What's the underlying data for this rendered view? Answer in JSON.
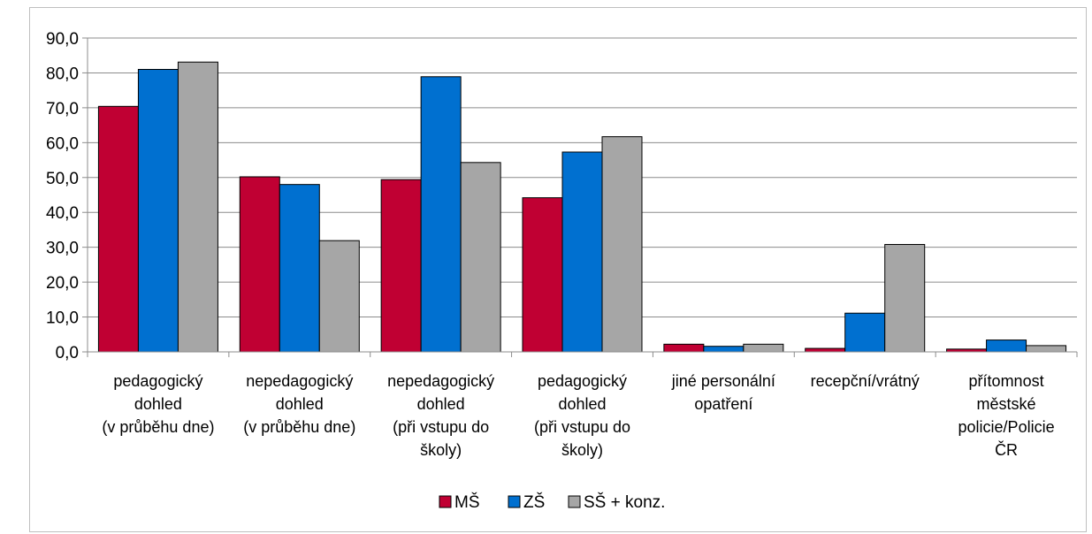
{
  "chart_data": {
    "type": "bar",
    "categories": [
      [
        "pedagogický",
        "dohled",
        "(v průběhu dne)"
      ],
      [
        "nepedagogický",
        "dohled",
        "(v průběhu dne)"
      ],
      [
        "nepedagogický",
        "dohled",
        "(při vstupu do",
        "školy)"
      ],
      [
        "pedagogický",
        "dohled",
        "(při vstupu do",
        "školy)"
      ],
      [
        "jiné personální",
        "opatření"
      ],
      [
        "recepční/vrátný"
      ],
      [
        "přítomnost",
        "městské",
        "policie/Policie",
        "ČR"
      ]
    ],
    "series": [
      {
        "name": "MŠ",
        "color": "#c00033",
        "values": [
          70.4,
          50.2,
          49.4,
          44.2,
          2.2,
          1.0,
          0.8
        ]
      },
      {
        "name": "ZŠ",
        "color": "#0070d0",
        "values": [
          81.0,
          48.0,
          78.9,
          57.3,
          1.6,
          11.1,
          3.4
        ]
      },
      {
        "name": "SŠ + konz.",
        "color": "#a6a6a6",
        "values": [
          83.1,
          31.9,
          54.3,
          61.7,
          2.2,
          30.8,
          1.8
        ]
      }
    ],
    "yticks": [
      "0,0",
      "10,0",
      "20,0",
      "30,0",
      "40,0",
      "50,0",
      "60,0",
      "70,0",
      "80,0",
      "90,0"
    ],
    "ylim": [
      0,
      90
    ],
    "grid": true,
    "legend_position": "bottom"
  }
}
